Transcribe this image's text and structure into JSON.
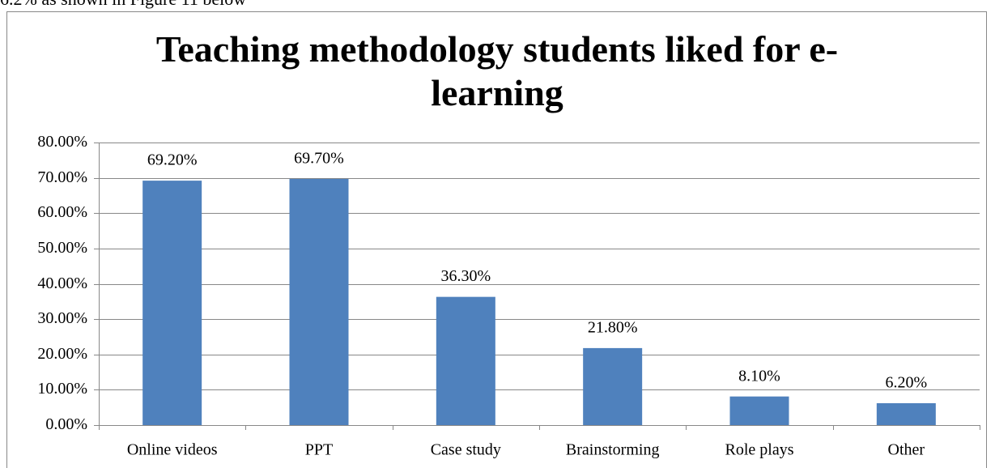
{
  "context_text": "6.2% as shown in Figure 11 below",
  "chart_data": {
    "type": "bar",
    "title": "Teaching methodology students liked for e-learning",
    "categories": [
      "Online videos",
      "PPT",
      "Case study",
      "Brainstorming",
      "Role plays",
      "Other"
    ],
    "values": [
      69.2,
      69.7,
      36.3,
      21.8,
      8.1,
      6.2
    ],
    "value_labels": [
      "69.20%",
      "69.70%",
      "36.30%",
      "21.80%",
      "8.10%",
      "6.20%"
    ],
    "color": "#4f81bd",
    "ylim": [
      0,
      80
    ],
    "yticks": [
      {
        "value": 0,
        "label": "0.00%"
      },
      {
        "value": 10,
        "label": "10.00%"
      },
      {
        "value": 20,
        "label": "20.00%"
      },
      {
        "value": 30,
        "label": "30.00%"
      },
      {
        "value": 40,
        "label": "40.00%"
      },
      {
        "value": 50,
        "label": "50.00%"
      },
      {
        "value": 60,
        "label": "60.00%"
      },
      {
        "value": 70,
        "label": "70.00%"
      },
      {
        "value": 80,
        "label": "80.00%"
      }
    ],
    "grid": true
  }
}
